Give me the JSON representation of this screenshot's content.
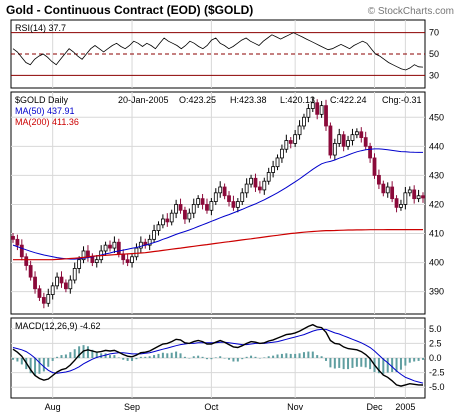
{
  "header": {
    "title": "Gold - Continuous Contract (EOD) ($GOLD)",
    "watermark": "© StockCharts.com"
  },
  "chart_data": [
    {
      "panel": "rsi",
      "type": "line",
      "label": "RSI(14) 37.7",
      "ylim": [
        20,
        80
      ],
      "yticks": [
        30,
        50,
        70
      ],
      "reference_lines": [
        70,
        50,
        30
      ],
      "values": [
        55,
        52,
        47,
        42,
        40,
        45,
        48,
        50,
        47,
        43,
        40,
        45,
        50,
        55,
        52,
        48,
        45,
        50,
        55,
        58,
        55,
        52,
        55,
        58,
        60,
        57,
        55,
        58,
        62,
        60,
        57,
        60,
        58,
        55,
        60,
        65,
        62,
        60,
        58,
        55,
        58,
        62,
        60,
        57,
        55,
        58,
        63,
        65,
        60,
        58,
        55,
        57,
        60,
        63,
        65,
        62,
        60,
        58,
        62,
        65,
        68,
        66,
        64,
        66,
        68,
        70,
        68,
        66,
        64,
        62,
        60,
        58,
        56,
        54,
        55,
        57,
        59,
        57,
        55,
        58,
        60,
        62,
        60,
        55,
        50,
        48,
        45,
        42,
        40,
        38,
        36,
        35,
        37,
        40,
        38,
        37.7
      ],
      "colors": {
        "line": "#000000",
        "ref_lines": "#8b0000"
      }
    },
    {
      "panel": "price",
      "type": "candlestick",
      "label": "$GOLD Daily",
      "info": {
        "date": "20-Jan-2005",
        "open": "O:423.25",
        "high": "H:423.38",
        "low": "L:420.13",
        "close": "C:422.24",
        "change": "Chg:-0.31"
      },
      "ma_labels": [
        {
          "name": "MA(50) 437.91",
          "color": "#0000cc"
        },
        {
          "name": "MA(200) 411.36",
          "color": "#cc0000"
        }
      ],
      "ylim": [
        383,
        458
      ],
      "yticks": [
        390,
        400,
        410,
        420,
        430,
        440,
        450
      ],
      "closes": [
        408,
        406,
        402,
        399,
        395,
        391,
        388,
        386,
        389,
        392,
        395,
        393,
        391,
        394,
        398,
        401,
        404,
        402,
        400,
        401,
        404,
        406,
        405,
        407,
        403,
        401,
        400,
        402,
        405,
        407,
        406,
        408,
        411,
        413,
        415,
        414,
        417,
        420,
        418,
        415,
        417,
        420,
        422,
        420,
        418,
        421,
        424,
        426,
        423,
        421,
        419,
        421,
        424,
        427,
        429,
        426,
        425,
        428,
        431,
        433,
        436,
        439,
        442,
        441,
        444,
        447,
        450,
        453,
        455,
        451,
        454,
        447,
        437,
        441,
        444,
        440,
        442,
        444,
        445,
        443,
        440,
        436,
        430,
        427,
        424,
        426,
        422,
        419,
        420,
        424,
        425,
        422,
        423,
        422.24
      ],
      "ma50": [
        406,
        405.5,
        404.9,
        404.4,
        403.9,
        403.4,
        403,
        402.6,
        402.3,
        402,
        401.7,
        401.5,
        401.3,
        401.2,
        401.2,
        401.3,
        401.5,
        401.7,
        402,
        402.3,
        402.6,
        403,
        403.3,
        403.7,
        404,
        404.3,
        404.6,
        404.9,
        405.2,
        405.6,
        406,
        406.4,
        406.9,
        407.4,
        408,
        408.5,
        409.1,
        409.7,
        410.2,
        410.7,
        411.2,
        411.8,
        412.4,
        413,
        413.6,
        414.2,
        414.8,
        415.4,
        416,
        416.5,
        417.1,
        417.7,
        418.3,
        419,
        419.6,
        420.2,
        420.9,
        421.6,
        422.4,
        423.2,
        424,
        424.9,
        425.8,
        426.8,
        427.8,
        428.8,
        429.9,
        431,
        432.1,
        433.1,
        434,
        434.5,
        434.8,
        435.3,
        435.9,
        436.4,
        437,
        437.6,
        438.1,
        438.5,
        438.8,
        439,
        439.1,
        439.1,
        439,
        438.8,
        438.6,
        438.4,
        438.2,
        438.1,
        438,
        437.95,
        437.92,
        437.91
      ],
      "ma200": [
        401,
        401,
        401,
        401,
        401,
        401,
        401,
        401,
        401,
        401,
        401.1,
        401.2,
        401.3,
        401.4,
        401.5,
        401.6,
        401.8,
        402,
        402.2,
        402.3,
        402.4,
        402.5,
        402.6,
        402.7,
        402.8,
        402.9,
        403,
        403.1,
        403.2,
        403.3,
        403.4,
        403.6,
        403.8,
        404,
        404.2,
        404.4,
        404.6,
        404.8,
        405,
        405.2,
        405.4,
        405.6,
        405.8,
        406,
        406.2,
        406.4,
        406.6,
        406.8,
        407,
        407.2,
        407.4,
        407.6,
        407.8,
        408,
        408.2,
        408.4,
        408.6,
        408.8,
        409,
        409.2,
        409.4,
        409.6,
        409.8,
        410,
        410.15,
        410.3,
        410.45,
        410.6,
        410.7,
        410.8,
        410.9,
        411,
        411,
        411.05,
        411.1,
        411.15,
        411.2,
        411.22,
        411.24,
        411.26,
        411.28,
        411.3,
        411.31,
        411.32,
        411.33,
        411.34,
        411.34,
        411.35,
        411.35,
        411.36,
        411.36,
        411.36,
        411.36,
        411.36
      ],
      "colors": {
        "up": "#000000",
        "down": "#8b0a3a",
        "ma50": "#0000cc",
        "ma200": "#cc0000"
      }
    },
    {
      "panel": "macd",
      "type": "line",
      "label": "MACD(12,26,9) -4.62",
      "ylim": [
        -6.5,
        6.5
      ],
      "yticks": [
        5.0,
        2.5,
        0.0,
        -2.5,
        -5.0
      ],
      "macd": [
        1.5,
        1,
        0.3,
        -0.8,
        -2,
        -3,
        -3.5,
        -3.8,
        -3.6,
        -3,
        -2.4,
        -2,
        -1.8,
        -1.2,
        -0.4,
        0.5,
        1.2,
        1.4,
        1.2,
        1,
        1.1,
        1.3,
        1.2,
        1.3,
        1,
        0.6,
        0.3,
        0.2,
        0.5,
        0.9,
        1,
        1.2,
        1.6,
        2,
        2.4,
        2.5,
        2.8,
        3.2,
        3.1,
        2.6,
        2.5,
        2.8,
        3,
        2.8,
        2.4,
        2.4,
        2.7,
        3,
        2.7,
        2.3,
        1.9,
        1.8,
        2.1,
        2.5,
        2.8,
        2.7,
        2.5,
        2.6,
        2.9,
        3.1,
        3.4,
        3.7,
        4,
        4.1,
        4.3,
        4.6,
        5,
        5.4,
        5.7,
        5.3,
        5.2,
        4.4,
        3,
        2.5,
        2.4,
        1.9,
        1.6,
        1.5,
        1.4,
        1.1,
        0.6,
        -0.1,
        -1.2,
        -2.1,
        -2.9,
        -3.3,
        -3.9,
        -4.6,
        -4.8,
        -4.6,
        -4.4,
        -4.5,
        -4.6,
        -4.62
      ],
      "signal": [
        1.8,
        1.6,
        1.4,
        1.1,
        0.6,
        0,
        -0.8,
        -1.5,
        -2.1,
        -2.5,
        -2.6,
        -2.5,
        -2.4,
        -2.2,
        -1.9,
        -1.5,
        -1,
        -0.6,
        -0.2,
        0.1,
        0.3,
        0.5,
        0.7,
        0.8,
        0.9,
        0.9,
        0.8,
        0.7,
        0.7,
        0.7,
        0.8,
        0.9,
        1.1,
        1.3,
        1.5,
        1.7,
        1.9,
        2.1,
        2.3,
        2.4,
        2.5,
        2.5,
        2.6,
        2.6,
        2.6,
        2.6,
        2.6,
        2.7,
        2.7,
        2.6,
        2.5,
        2.4,
        2.3,
        2.3,
        2.4,
        2.5,
        2.5,
        2.5,
        2.6,
        2.7,
        2.8,
        3,
        3.2,
        3.4,
        3.6,
        3.8,
        4,
        4.3,
        4.6,
        4.8,
        4.9,
        4.9,
        4.6,
        4.3,
        4.1,
        3.8,
        3.5,
        3.2,
        2.9,
        2.6,
        2.2,
        1.8,
        1.2,
        0.5,
        -0.2,
        -0.8,
        -1.5,
        -2.2,
        -2.8,
        -3.3,
        -3.6,
        -3.9,
        -4.1,
        -4.3
      ],
      "colors": {
        "macd": "#000000",
        "signal": "#0000cc",
        "histogram": "#5f9ea0"
      }
    }
  ],
  "x_axis": {
    "labels": [
      "Aug",
      "Sep",
      "Oct",
      "Nov",
      "Dec",
      "2005"
    ],
    "label_index": [
      9,
      27,
      45,
      64,
      82,
      89
    ]
  }
}
